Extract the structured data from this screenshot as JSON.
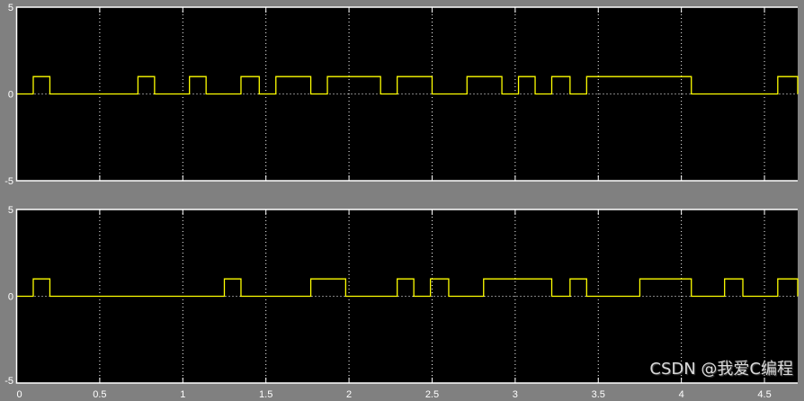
{
  "chart_data": [
    {
      "type": "line",
      "step": true,
      "xlim": [
        0,
        4.7
      ],
      "ylim": [
        -5,
        5
      ],
      "yticks": [
        "5",
        "0",
        "-5"
      ],
      "xticks": [
        "0",
        "0.5",
        "1",
        "1.5",
        "2",
        "2.5",
        "3",
        "3.5",
        "4",
        "4.5"
      ],
      "grid": true,
      "background": "#000000",
      "line_color": "#ffff00",
      "high_intervals": [
        [
          0.1,
          0.2
        ],
        [
          0.73,
          0.83
        ],
        [
          1.04,
          1.14
        ],
        [
          1.35,
          1.46
        ],
        [
          1.56,
          1.77
        ],
        [
          1.87,
          2.19
        ],
        [
          2.29,
          2.5
        ],
        [
          2.71,
          2.92
        ],
        [
          3.02,
          3.12
        ],
        [
          3.22,
          3.33
        ],
        [
          3.43,
          4.06
        ],
        [
          4.58,
          4.7
        ]
      ],
      "high_value": 1,
      "low_value": 0
    },
    {
      "type": "line",
      "step": true,
      "xlim": [
        0,
        4.7
      ],
      "ylim": [
        -5,
        5
      ],
      "yticks": [
        "5",
        "0",
        "-5"
      ],
      "xticks": [
        "0",
        "0.5",
        "1",
        "1.5",
        "2",
        "2.5",
        "3",
        "3.5",
        "4",
        "4.5"
      ],
      "grid": true,
      "background": "#000000",
      "line_color": "#ffff00",
      "high_intervals": [
        [
          0.1,
          0.2
        ],
        [
          1.25,
          1.35
        ],
        [
          1.77,
          1.98
        ],
        [
          2.29,
          2.39
        ],
        [
          2.49,
          2.6
        ],
        [
          2.81,
          3.22
        ],
        [
          3.33,
          3.43
        ],
        [
          3.75,
          4.06
        ],
        [
          4.26,
          4.37
        ],
        [
          4.58,
          4.7
        ]
      ],
      "high_value": 1,
      "low_value": 0
    }
  ],
  "watermark": "CSDN @我爱C编程"
}
